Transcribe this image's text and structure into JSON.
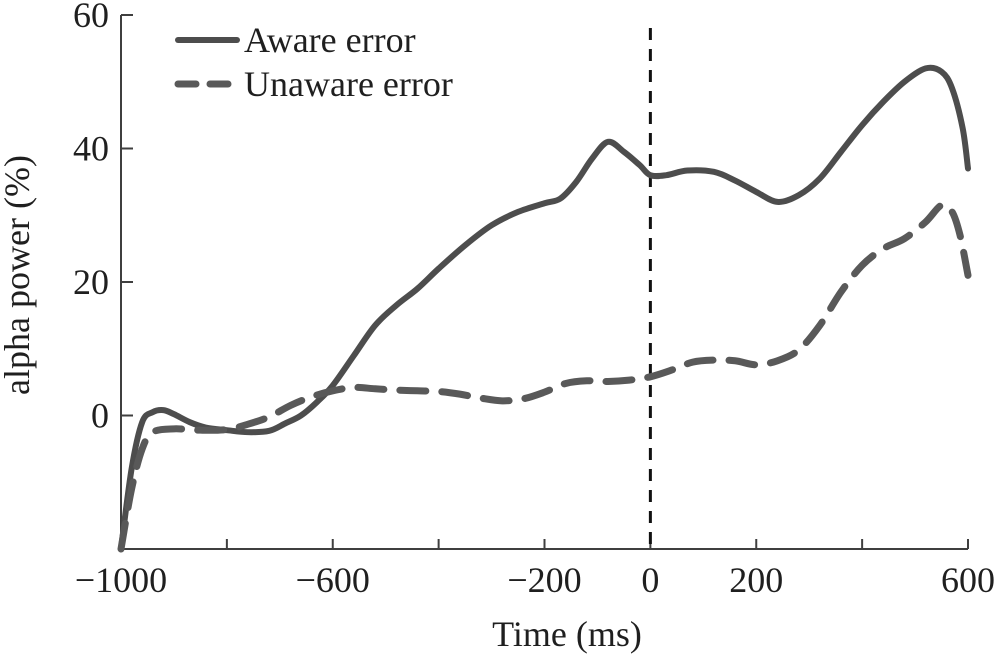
{
  "chart_data": {
    "type": "line",
    "xlabel": "Time (ms)",
    "ylabel": "alpha power (%)",
    "xlim": [
      -1000,
      600
    ],
    "ylim": [
      -20,
      60
    ],
    "x_ticks": [
      -1000,
      -800,
      -600,
      -400,
      -200,
      0,
      200,
      400,
      600
    ],
    "x_tick_labels": [
      "−1000",
      "",
      "−600",
      "",
      "−200",
      "0",
      "200",
      "",
      "600"
    ],
    "y_ticks": [
      0,
      20,
      40,
      60
    ],
    "y_tick_labels": [
      "0",
      "20",
      "40",
      "60"
    ],
    "reference_line": {
      "x": 0,
      "style": "dashed",
      "color": "#111111"
    },
    "legend": {
      "placement": "top-left"
    },
    "series": [
      {
        "name": "Aware error",
        "style": "solid",
        "color": "#4d4d4d",
        "points": [
          [
            -1000,
            -20
          ],
          [
            -980,
            -8
          ],
          [
            -960,
            -1
          ],
          [
            -940,
            0.5
          ],
          [
            -920,
            0.8
          ],
          [
            -900,
            0.2
          ],
          [
            -870,
            -1
          ],
          [
            -840,
            -1.8
          ],
          [
            -800,
            -2.2
          ],
          [
            -760,
            -2.5
          ],
          [
            -720,
            -2.3
          ],
          [
            -690,
            -1.2
          ],
          [
            -660,
            0
          ],
          [
            -630,
            2
          ],
          [
            -600,
            4.5
          ],
          [
            -560,
            9
          ],
          [
            -520,
            13.5
          ],
          [
            -480,
            16.5
          ],
          [
            -440,
            19
          ],
          [
            -400,
            22
          ],
          [
            -350,
            25.5
          ],
          [
            -300,
            28.5
          ],
          [
            -250,
            30.5
          ],
          [
            -200,
            31.8
          ],
          [
            -170,
            32.5
          ],
          [
            -140,
            35
          ],
          [
            -110,
            38.5
          ],
          [
            -80,
            41
          ],
          [
            -50,
            39.5
          ],
          [
            -20,
            37.5
          ],
          [
            0,
            36
          ],
          [
            30,
            36
          ],
          [
            70,
            36.7
          ],
          [
            120,
            36.5
          ],
          [
            160,
            35.2
          ],
          [
            200,
            33.5
          ],
          [
            240,
            32
          ],
          [
            280,
            33
          ],
          [
            320,
            35.5
          ],
          [
            360,
            39.5
          ],
          [
            400,
            43.5
          ],
          [
            440,
            47
          ],
          [
            480,
            50
          ],
          [
            520,
            52
          ],
          [
            550,
            51.5
          ],
          [
            570,
            49
          ],
          [
            590,
            43
          ],
          [
            600,
            37
          ]
        ]
      },
      {
        "name": "Unaware error",
        "style": "dashed",
        "color": "#595959",
        "points": [
          [
            -1000,
            -20
          ],
          [
            -980,
            -11
          ],
          [
            -960,
            -5
          ],
          [
            -940,
            -2.5
          ],
          [
            -900,
            -2
          ],
          [
            -850,
            -2.2
          ],
          [
            -800,
            -2.1
          ],
          [
            -760,
            -1.3
          ],
          [
            -720,
            -0.2
          ],
          [
            -680,
            1.5
          ],
          [
            -640,
            2.8
          ],
          [
            -600,
            3.7
          ],
          [
            -560,
            4.2
          ],
          [
            -520,
            4
          ],
          [
            -480,
            3.8
          ],
          [
            -440,
            3.7
          ],
          [
            -400,
            3.6
          ],
          [
            -360,
            3.2
          ],
          [
            -320,
            2.6
          ],
          [
            -280,
            2.2
          ],
          [
            -240,
            2.5
          ],
          [
            -200,
            3.5
          ],
          [
            -160,
            4.8
          ],
          [
            -120,
            5.2
          ],
          [
            -80,
            5.1
          ],
          [
            -40,
            5.3
          ],
          [
            0,
            5.8
          ],
          [
            40,
            6.8
          ],
          [
            80,
            8
          ],
          [
            120,
            8.3
          ],
          [
            160,
            8.2
          ],
          [
            200,
            7.6
          ],
          [
            240,
            8.2
          ],
          [
            280,
            9.8
          ],
          [
            320,
            13.5
          ],
          [
            360,
            18.5
          ],
          [
            400,
            22.5
          ],
          [
            440,
            25
          ],
          [
            480,
            26.5
          ],
          [
            520,
            29
          ],
          [
            550,
            31.5
          ],
          [
            570,
            30.5
          ],
          [
            585,
            27
          ],
          [
            600,
            21
          ]
        ]
      }
    ]
  }
}
